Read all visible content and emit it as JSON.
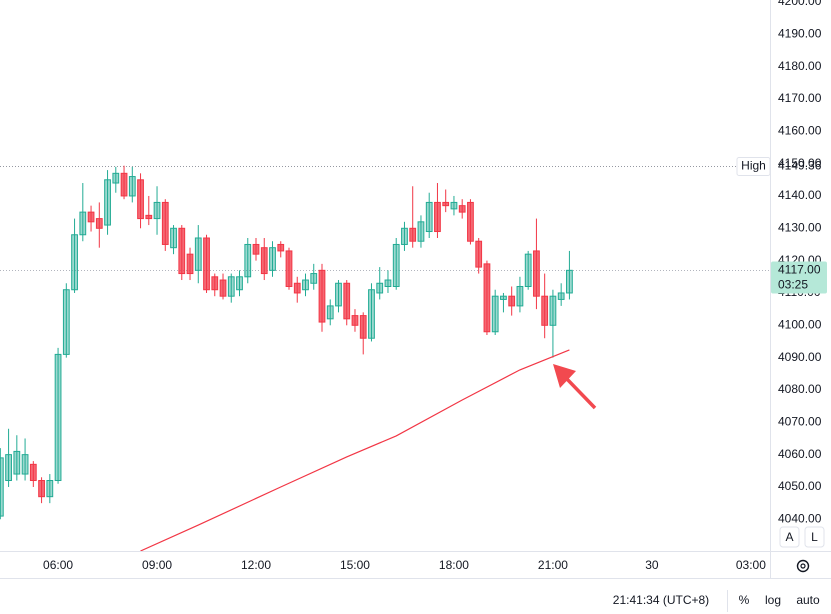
{
  "chart_data": {
    "type": "candlestick",
    "x": [
      4.25,
      4.5,
      4.75,
      5,
      5.25,
      5.5,
      5.75,
      6,
      6.25,
      6.5,
      6.75,
      7,
      7.25,
      7.5,
      7.75,
      8,
      8.25,
      8.5,
      8.75,
      9,
      9.25,
      9.5,
      9.75,
      10,
      10.25,
      10.5,
      10.75,
      11,
      11.25,
      11.5,
      11.75,
      12,
      12.25,
      12.5,
      12.75,
      13,
      13.25,
      13.5,
      13.75,
      14,
      14.25,
      14.5,
      14.75,
      15,
      15.25,
      15.5,
      15.75,
      16,
      16.25,
      16.5,
      16.75,
      17,
      17.25,
      17.5,
      17.75,
      18,
      18.25,
      18.5,
      18.75,
      19,
      19.25,
      19.5,
      19.75,
      20,
      20.25,
      20.5,
      20.75,
      21,
      21.25,
      21.5
    ],
    "open": [
      4041,
      4052,
      4054,
      4054,
      4057,
      4052,
      4047,
      4052,
      4091,
      4111,
      4128,
      4135,
      4133,
      4131,
      4144,
      4147,
      4140,
      4145,
      4134,
      4133,
      4138,
      4124,
      4130,
      4122,
      4117,
      4127,
      4115,
      4114,
      4109,
      4111,
      4115,
      4125,
      4124,
      4117,
      4125,
      4123,
      4113,
      4111,
      4113,
      4117,
      4102,
      4106,
      4113,
      4103,
      4103,
      4096,
      4110,
      4112,
      4112,
      4125,
      4130,
      4126,
      4129,
      4138,
      4138,
      4136,
      4137,
      4138,
      4126,
      4119,
      4098,
      4108,
      4109,
      4106,
      4112,
      4123,
      4109,
      4100,
      4108,
      4110
    ],
    "high": [
      4062,
      4068,
      4066,
      4065,
      4058,
      4053,
      4054,
      4093,
      4113,
      4133,
      4144,
      4137,
      4138,
      4148,
      4149,
      4149.36,
      4149,
      4147,
      4140,
      4143,
      4139,
      4131,
      4131,
      4124,
      4131,
      4128,
      4116,
      4116,
      4116,
      4117,
      4127,
      4127,
      4127,
      4126,
      4126,
      4124,
      4115,
      4116,
      4119,
      4119,
      4108,
      4114,
      4114,
      4105,
      4104,
      4113,
      4118,
      4117,
      4127,
      4132,
      4143,
      4134,
      4141,
      4144,
      4142,
      4140,
      4139,
      4139,
      4127,
      4120,
      4111,
      4110,
      4112,
      4115,
      4123,
      4133,
      4116,
      4111,
      4113,
      4123
    ],
    "low": [
      4040,
      4050,
      4052,
      4052,
      4050,
      4045,
      4045,
      4051,
      4090,
      4110,
      4126,
      4129,
      4124,
      4128,
      4141,
      4139,
      4138,
      4130,
      4131,
      4128,
      4123,
      4122,
      4114,
      4114,
      4113,
      4110,
      4109,
      4108,
      4107,
      4109,
      4113,
      4120,
      4114,
      4115,
      4121,
      4111,
      4107,
      4109,
      4111,
      4098,
      4100,
      4104,
      4100,
      4098,
      4091,
      4095,
      4108,
      4110,
      4111,
      4123,
      4124,
      4124,
      4127,
      4127,
      4135,
      4134,
      4133,
      4125,
      4116,
      4097,
      4097,
      4104,
      4103,
      4104,
      4111,
      4105,
      4096,
      4090,
      4106,
      4108
    ],
    "close": [
      4059,
      4060,
      4061,
      4060,
      4052,
      4047,
      4052,
      4091,
      4111,
      4128,
      4135,
      4132,
      4130,
      4145,
      4147,
      4140,
      4146,
      4133,
      4133,
      4138,
      4125,
      4130,
      4116,
      4116,
      4127,
      4111,
      4111,
      4109,
      4115,
      4115,
      4125,
      4122,
      4116,
      4124,
      4123,
      4112,
      4110,
      4114,
      4116,
      4101,
      4106,
      4113,
      4102,
      4100,
      4096,
      4111,
      4113,
      4114,
      4125,
      4130,
      4126,
      4132,
      4138,
      4129,
      4137,
      4138,
      4135,
      4126,
      4118,
      4098,
      4109,
      4109,
      4106,
      4112,
      4122,
      4109,
      4100,
      4109,
      4110,
      4117
    ],
    "up_color": "#22ab94",
    "down_color": "#f23645",
    "lines": [
      {
        "color": "#f23645",
        "x": [
          8.5,
          10.25,
          12.75,
          14.75,
          16.25,
          18.25,
          20,
          21.5
        ],
        "values": [
          4030.2,
          4038.2,
          4050,
          4059.3,
          4065.8,
          4076.9,
          4086.2,
          4092.4
        ]
      }
    ],
    "xlim": [
      4.24,
      27.58
    ],
    "ylim": [
      4030.2,
      4200.6
    ],
    "xticks": [
      {
        "value": 6,
        "label": "06:00"
      },
      {
        "value": 9,
        "label": "09:00"
      },
      {
        "value": 12,
        "label": "12:00"
      },
      {
        "value": 15,
        "label": "15:00"
      },
      {
        "value": 18,
        "label": "18:00"
      },
      {
        "value": 21,
        "label": "21:00"
      },
      {
        "value": 24,
        "label": "30"
      },
      {
        "value": 27,
        "label": "03:00"
      }
    ],
    "yticks": [
      {
        "value": 4040,
        "label": "4040.00"
      },
      {
        "value": 4050,
        "label": "4050.00"
      },
      {
        "value": 4060,
        "label": "4060.00"
      },
      {
        "value": 4070,
        "label": "4070.00"
      },
      {
        "value": 4080,
        "label": "4080.00"
      },
      {
        "value": 4090,
        "label": "4090.00"
      },
      {
        "value": 4100,
        "label": "4100.00"
      },
      {
        "value": 4110,
        "label": "4110.00"
      },
      {
        "value": 4120,
        "label": "4120.00"
      },
      {
        "value": 4130,
        "label": "4130.00"
      },
      {
        "value": 4140,
        "label": "4140.00"
      },
      {
        "value": 4150,
        "label": "4150.00"
      },
      {
        "value": 4160,
        "label": "4160.00"
      },
      {
        "value": 4170,
        "label": "4170.00"
      },
      {
        "value": 4180,
        "label": "4180.00"
      },
      {
        "value": 4190,
        "label": "4190.00"
      },
      {
        "value": 4200,
        "label": "4200.00"
      }
    ],
    "grid": false,
    "log_scale": false,
    "high_marker": {
      "name": "High",
      "value": 4149.36
    },
    "last_price": {
      "value": 4117,
      "label": "4117.00",
      "countdown": "03:25"
    }
  },
  "axis_buttons": [
    "A",
    "L"
  ],
  "status_bar": {
    "time": "21:41:34 (UTC+8)",
    "percent": "%",
    "log": "log",
    "auto": "auto"
  }
}
